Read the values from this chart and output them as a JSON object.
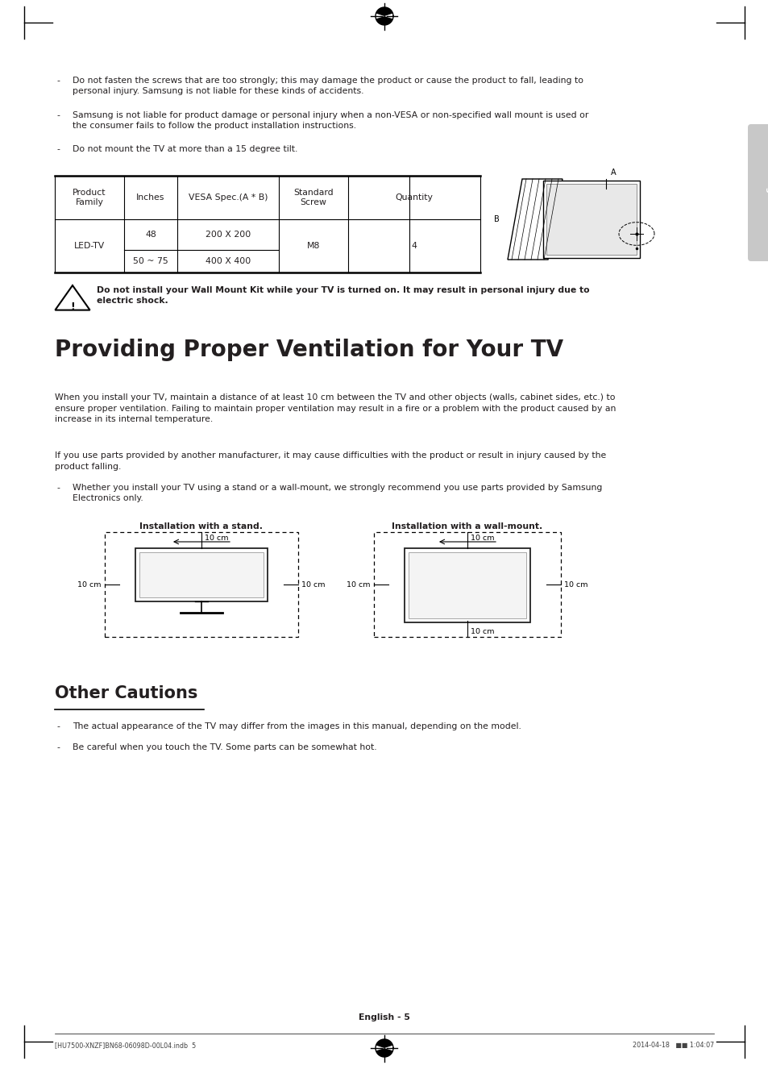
{
  "bg_color": "#ffffff",
  "text_color": "#231f20",
  "bullet_points_top": [
    "Do not fasten the screws that are too strongly; this may damage the product or cause the product to fall, leading to\npersonal injury. Samsung is not liable for these kinds of accidents.",
    "Samsung is not liable for product damage or personal injury when a non-VESA or non-specified wall mount is used or\nthe consumer fails to follow the product installation instructions.",
    "Do not mount the TV at more than a 15 degree tilt."
  ],
  "table_headers": [
    "Product\nFamily",
    "Inches",
    "VESA Spec.(A * B)",
    "Standard\nScrew",
    "Quantity"
  ],
  "warning_text": "Do not install your Wall Mount Kit while your TV is turned on. It may result in personal injury due to\nelectric shock.",
  "main_title": "Providing Proper Ventilation for Your TV",
  "para1": "When you install your TV, maintain a distance of at least 10 cm between the TV and other objects (walls, cabinet sides, etc.) to\nensure proper ventilation. Failing to maintain proper ventilation may result in a fire or a problem with the product caused by an\nincrease in its internal temperature.",
  "para2": "If you use parts provided by another manufacturer, it may cause difficulties with the product or result in injury caused by the\nproduct falling.",
  "bullet_ventilation": "Whether you install your TV using a stand or a wall-mount, we strongly recommend you use parts provided by Samsung\nElectronics only.",
  "install_stand_label": "Installation with a stand.",
  "install_wall_label": "Installation with a wall-mount.",
  "other_cautions_title": "Other Cautions",
  "caution_bullets": [
    "The actual appearance of the TV may differ from the images in this manual, depending on the model.",
    "Be careful when you touch the TV. Some parts can be somewhat hot."
  ],
  "page_number": "English - 5",
  "footer_left": "[HU7500-XNZF]BN68-06098D-00L04.indb  5",
  "footer_right": "2014-04-18   ■■ 1:04:07",
  "english_tab_text": "English",
  "tab_color": "#c8c8c8",
  "fs_body": 7.8,
  "fs_small": 6.8,
  "fs_title": 20,
  "fs_section": 15
}
